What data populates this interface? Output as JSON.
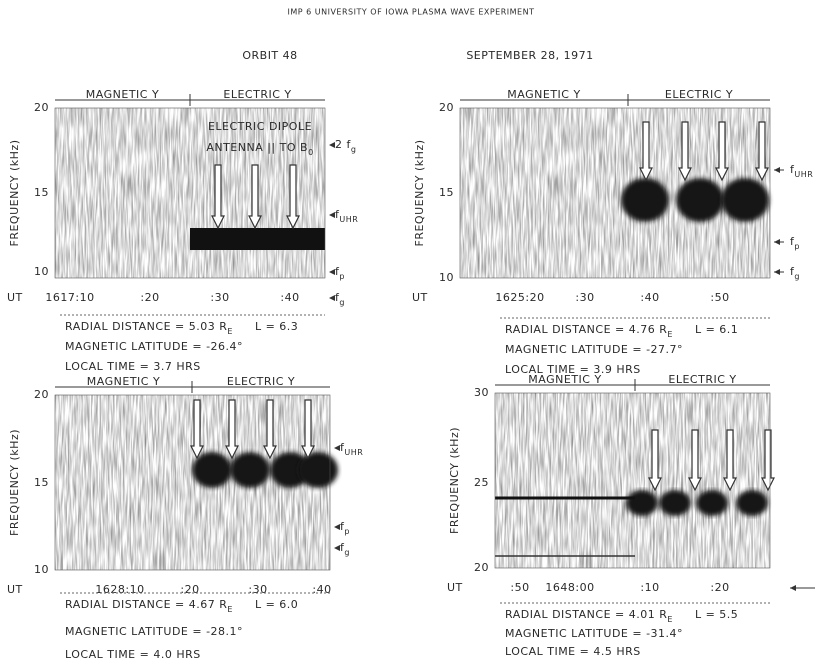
{
  "header": {
    "title": "IMP 6 UNIVERSITY OF IOWA PLASMA WAVE EXPERIMENT",
    "orbit": "ORBIT 48",
    "date": "SEPTEMBER 28, 1971"
  },
  "panels": [
    {
      "magnetic": "MAGNETIC Y",
      "electric": "ELECTRIC Y",
      "ylabel": "FREQUENCY (kHz)",
      "yticks": [
        "20",
        "15",
        "10"
      ],
      "ut_label": "UT",
      "ut_ticks": [
        "1617:10",
        ":20",
        ":30",
        ":40"
      ],
      "note": [
        "ELECTRIC DIPOLE",
        "ANTENNA || TO B"
      ],
      "note_sub": "0",
      "annotations": [
        {
          "main": "2 f",
          "sub": "g"
        },
        {
          "main": "f",
          "sub": "UHR"
        },
        {
          "main": "f",
          "sub": "p"
        },
        {
          "main": "f",
          "sub": "g"
        }
      ],
      "radial": {
        "text": "RADIAL DISTANCE = 5.03 R",
        "sub": "E",
        "l": "L = 6.3"
      },
      "latitude": "MAGNETIC LATITUDE = -26.4°",
      "local_time": "LOCAL TIME = 3.7 HRS"
    },
    {
      "magnetic": "MAGNETIC Y",
      "electric": "ELECTRIC Y",
      "ylabel": "FREQUENCY (kHz)",
      "yticks": [
        "20",
        "15",
        "10"
      ],
      "ut_label": "UT",
      "ut_ticks": [
        "1625:20",
        ":30",
        ":40",
        ":50"
      ],
      "annotations": [
        {
          "main": "f",
          "sub": "UHR"
        },
        {
          "main": "f",
          "sub": "p"
        },
        {
          "main": "f",
          "sub": "g"
        }
      ],
      "radial": {
        "text": "RADIAL DISTANCE = 4.76 R",
        "sub": "E",
        "l": "L = 6.1"
      },
      "latitude": "MAGNETIC LATITUDE = -27.7°",
      "local_time": "LOCAL TIME = 3.9 HRS"
    },
    {
      "magnetic": "MAGNETIC Y",
      "electric": "ELECTRIC Y",
      "ylabel": "FREQUENCY (kHz)",
      "yticks": [
        "20",
        "15",
        "10"
      ],
      "ut_label": "UT",
      "ut_ticks": [
        "1628:10",
        ":20",
        ":30",
        ":40"
      ],
      "annotations": [
        {
          "main": "f",
          "sub": "UHR"
        },
        {
          "main": "f",
          "sub": "p"
        },
        {
          "main": "f",
          "sub": "g"
        }
      ],
      "radial": {
        "text": "RADIAL DISTANCE = 4.67 R",
        "sub": "E",
        "l": "L = 6.0"
      },
      "latitude": "MAGNETIC LATITUDE = -28.1°",
      "local_time": "LOCAL TIME = 4.0 HRS"
    },
    {
      "magnetic": "MAGNETIC Y",
      "electric": "ELECTRIC Y",
      "ylabel": "FREQUENCY (kHz)",
      "yticks": [
        "30",
        "25",
        "20"
      ],
      "ut_label": "UT",
      "ut_ticks": [
        ":50",
        "1648:00",
        ":10",
        ":20"
      ],
      "annotations": [],
      "radial": {
        "text": "RADIAL DISTANCE = 4.01 R",
        "sub": "E",
        "l": "L = 5.5"
      },
      "latitude": "MAGNETIC LATITUDE = -31.4°",
      "local_time": "LOCAL TIME = 4.5 HRS"
    }
  ]
}
